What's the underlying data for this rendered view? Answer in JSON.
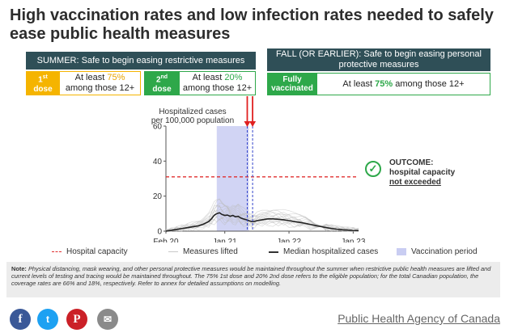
{
  "title": "High vaccination rates and low infection rates needed to safely ease public health measures",
  "summer": {
    "header": "SUMMER: Safe to begin easing restrictive measures",
    "dose1_label_pre": "1",
    "dose1_label_sup": "st",
    "dose1_label_post": "dose",
    "dose1_text_a": "At least ",
    "dose1_pct": "75%",
    "dose1_text_b": "among those 12+",
    "dose2_label_pre": "2",
    "dose2_label_sup": "nd",
    "dose2_label_post": "dose",
    "dose2_text_a": "At least ",
    "dose2_pct": "20%",
    "dose2_text_b": "among those 12+"
  },
  "fall": {
    "header": "FALL (OR EARLIER): Safe to begin easing personal protective measures",
    "label": "Fully vaccinated",
    "text_a": "At least ",
    "pct": "75%",
    "text_b": " among those 12+"
  },
  "outcome": {
    "heading": "OUTCOME:",
    "line2": "hospital capacity",
    "line3": "not exceeded"
  },
  "legend": {
    "hospital_capacity": "Hospital capacity",
    "measures_lifted": "Measures lifted",
    "median": "Median hospitalized cases",
    "vaccination_period": "Vaccination period"
  },
  "note": {
    "label": "Note:",
    "text": " Physical distancing, mask wearing, and other personal protective measures would be maintained throughout the summer when restrictive public health measures are lifted and current levels of testing and tracing would be maintained throughout. The 75% 1st dose and 20% 2nd dose refers to the eligible population; for the total Canadian population, the coverage rates are 66% and 18%, respectively. Refer to annex for detailed assumptions on modelling."
  },
  "source": "Public Health Agency of Canada",
  "social": {
    "facebook": "facebook-icon",
    "twitter": "twitter-icon",
    "pinterest": "pinterest-icon",
    "email": "email-icon"
  },
  "colors": {
    "header_bg": "#2f4f57",
    "yellow": "#e8a400",
    "green": "#2ea84a",
    "capacity": "#e03030",
    "lifted_arrow": "#e02020",
    "lifted_line": "#3344cc",
    "vaccination": "#c9cdf2"
  },
  "chart_data": {
    "type": "line",
    "title": "Hospitalized cases per 100,000 population",
    "xlabel": "",
    "ylabel": "Hospitalized cases per 100,000 population",
    "ylim": [
      0,
      60
    ],
    "yticks": [
      0,
      20,
      40,
      60
    ],
    "x_tick_labels": [
      "Feb 20",
      "Jan 21",
      "Jan 22",
      "Jan 23"
    ],
    "x_tick_months": [
      0,
      11,
      23,
      35
    ],
    "x_range_months": [
      0,
      36
    ],
    "hospital_capacity": 31,
    "vaccination_period_months": [
      9.5,
      15.5
    ],
    "measures_lifted_months": [
      15.2,
      16.2
    ],
    "series": [
      {
        "name": "Median hospitalized cases",
        "x_months": [
          0,
          1,
          2,
          3,
          4,
          5,
          6,
          7,
          8,
          8.5,
          9,
          9.5,
          10,
          10.5,
          11,
          11.5,
          12,
          12.5,
          13,
          13.5,
          14,
          14.5,
          15,
          15.5,
          16,
          16.5,
          17,
          18,
          19,
          20,
          21,
          22,
          23,
          24,
          25,
          26,
          27,
          28,
          29,
          30,
          31,
          32,
          33,
          34,
          35,
          36
        ],
        "values": [
          0,
          0.5,
          1,
          1.5,
          2,
          2.5,
          3,
          4,
          5.5,
          7,
          9,
          10,
          10.5,
          9.5,
          9,
          9.2,
          8.5,
          9,
          8.2,
          8.5,
          7.5,
          7,
          6.5,
          6,
          5.5,
          5.5,
          6,
          6.5,
          7,
          7,
          6.8,
          6.5,
          6,
          5.5,
          5,
          4.5,
          3.8,
          3.2,
          2.6,
          2,
          1.5,
          1.1,
          0.8,
          0.6,
          0.4,
          0.3
        ]
      }
    ],
    "legend_placement": "bottom"
  }
}
